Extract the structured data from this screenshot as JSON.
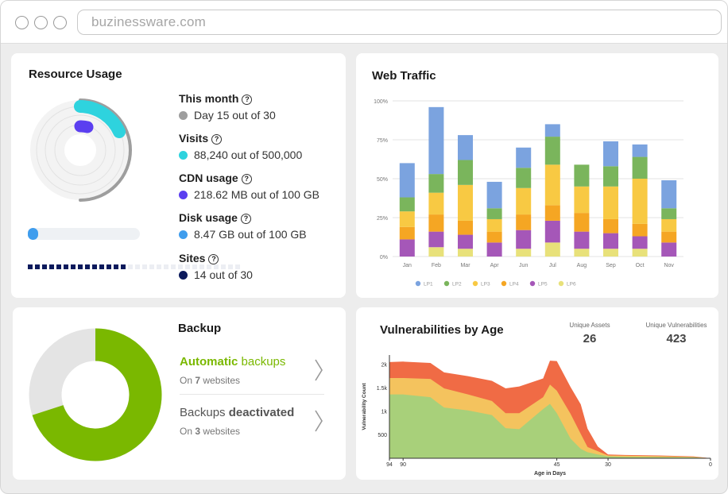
{
  "browser": {
    "url": "buzinessware.com"
  },
  "resource_usage": {
    "title": "Resource Usage",
    "stats": [
      {
        "label": "This month",
        "value": "Day 15 out of 30",
        "color": "#9e9e9e"
      },
      {
        "label": "Visits",
        "value": "88,240 out of 500,000",
        "color": "#2ed3de"
      },
      {
        "label": "CDN usage",
        "value": "218.62 MB out of 100 GB",
        "color": "#5b3ff0"
      },
      {
        "label": "Disk usage",
        "value": "8.47 GB out of 100 GB",
        "color": "#3f9ded"
      },
      {
        "label": "Sites",
        "value": "14 out of 30",
        "color": "#0c1a5c"
      }
    ],
    "help_icon": "?",
    "disk_fraction": 0.0847,
    "sites_used": 14,
    "sites_total": 30
  },
  "web_traffic": {
    "title": "Web Traffic"
  },
  "chart_data": [
    {
      "type": "bar",
      "stacked": true,
      "title": "Web Traffic",
      "categories": [
        "Jan",
        "Feb",
        "Mar",
        "Apr",
        "Jun",
        "Jul",
        "Aug",
        "Sep",
        "Oct",
        "Nov"
      ],
      "ylim": [
        0,
        100
      ],
      "yticks": [
        "0%",
        "25%",
        "50%",
        "75%",
        "100%"
      ],
      "series": [
        {
          "name": "LP6",
          "color": "#e8e17a",
          "values": [
            0,
            6,
            5,
            0,
            5,
            9,
            5,
            5,
            5,
            0
          ]
        },
        {
          "name": "LP5",
          "color": "#a557b8",
          "values": [
            11,
            10,
            9,
            9,
            12,
            14,
            11,
            10,
            8,
            9
          ]
        },
        {
          "name": "LP4",
          "color": "#f5a623",
          "values": [
            8,
            11,
            9,
            7,
            10,
            10,
            12,
            9,
            8,
            7
          ]
        },
        {
          "name": "LP3",
          "color": "#f8c943",
          "values": [
            10,
            14,
            23,
            8,
            17,
            26,
            17,
            21,
            29,
            8
          ]
        },
        {
          "name": "LP2",
          "color": "#7ab55c",
          "values": [
            9,
            12,
            16,
            7,
            13,
            18,
            14,
            13,
            14,
            7
          ]
        },
        {
          "name": "LP1",
          "color": "#7ba3df",
          "values": [
            22,
            43,
            16,
            17,
            13,
            8,
            0,
            16,
            8,
            18
          ]
        }
      ],
      "legend": [
        "LP1",
        "LP2",
        "LP3",
        "LP4",
        "LP5",
        "LP6"
      ]
    },
    {
      "type": "area",
      "title": "Vulnerabilities by Age",
      "xlabel": "Age in Days",
      "ylabel": "Vulnerability Count",
      "xticks": [
        "94",
        "90",
        "45",
        "30",
        "0"
      ],
      "yticks": [
        "500",
        "1k",
        "1.5k",
        "2k"
      ],
      "x": [
        94,
        90,
        82,
        78,
        71,
        64,
        60,
        56,
        49,
        47,
        45,
        41,
        38,
        36,
        33,
        30,
        25,
        15,
        5,
        0
      ],
      "series": [
        {
          "name": "low",
          "color": "#a8d07a",
          "values": [
            1360,
            1360,
            1300,
            1080,
            1020,
            920,
            640,
            620,
            1050,
            1160,
            960,
            420,
            200,
            130,
            80,
            40,
            30,
            25,
            20,
            0
          ]
        },
        {
          "name": "medium",
          "color": "#f4c35e",
          "values": [
            1710,
            1710,
            1690,
            1490,
            1360,
            1220,
            960,
            960,
            1300,
            1570,
            1440,
            950,
            520,
            240,
            150,
            60,
            55,
            45,
            30,
            0
          ]
        },
        {
          "name": "high",
          "color": "#f06b45",
          "values": [
            2050,
            2060,
            2030,
            1830,
            1750,
            1650,
            1490,
            1530,
            1700,
            2080,
            2070,
            1520,
            1150,
            630,
            250,
            80,
            70,
            60,
            40,
            0
          ]
        }
      ]
    }
  ],
  "backup": {
    "title": "Backup",
    "auto_bold": "Automatic",
    "auto_rest": " backups",
    "auto_sub_prefix": "On ",
    "auto_sub_count": "7",
    "auto_sub_suffix": " websites",
    "deact_prefix": "Backups ",
    "deact_bold": "deactivated",
    "deact_sub_prefix": "On ",
    "deact_sub_count": "3",
    "deact_sub_suffix": " websites",
    "green": "#7ab800",
    "grey": "#e4e4e4"
  },
  "vulnerabilities": {
    "title": "Vulnerabilities by Age",
    "unique_assets_label": "Unique Assets",
    "unique_assets_value": "26",
    "unique_vuln_label": "Unique Vulnerabilities",
    "unique_vuln_value": "423"
  }
}
